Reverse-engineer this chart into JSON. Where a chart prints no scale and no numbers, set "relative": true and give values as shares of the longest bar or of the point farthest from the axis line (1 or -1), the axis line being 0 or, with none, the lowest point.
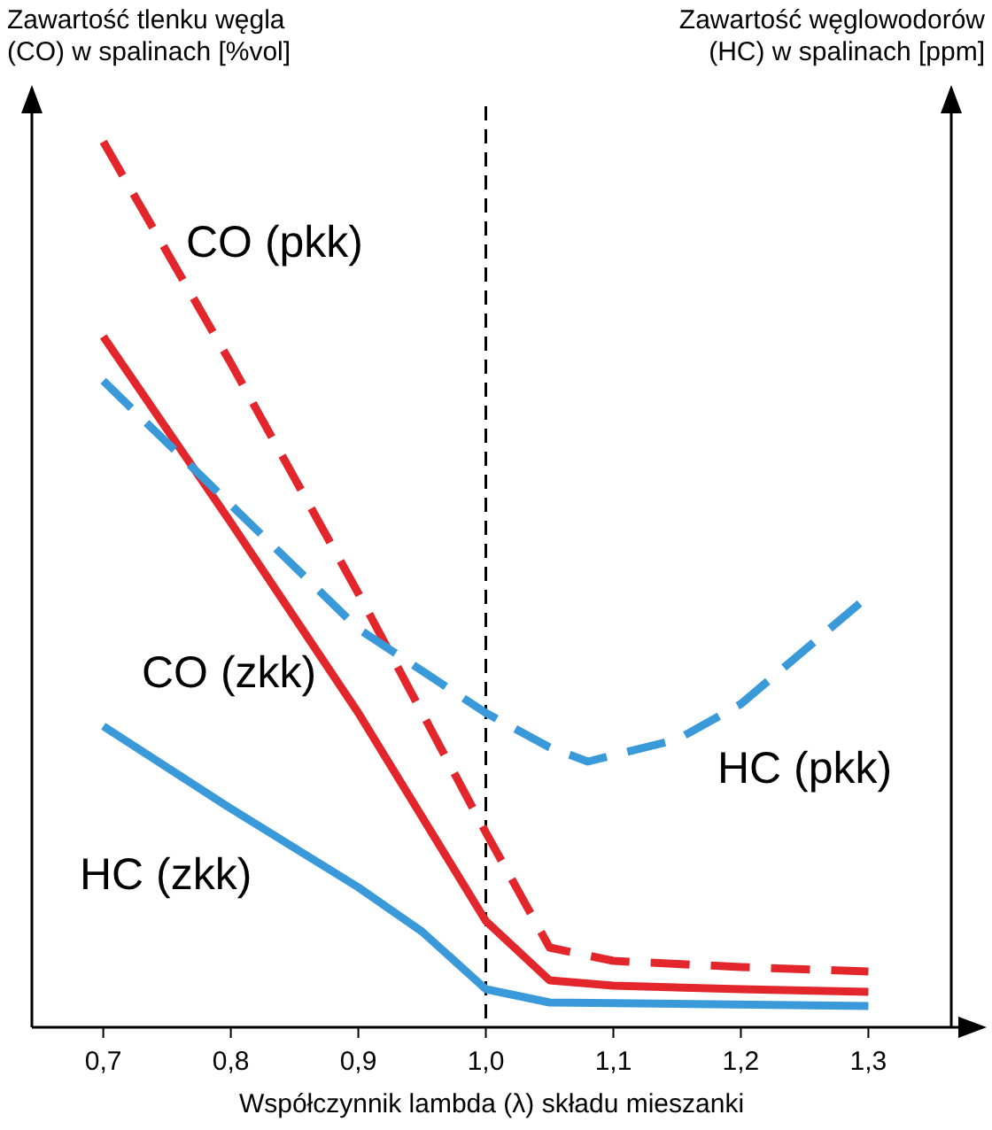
{
  "chart_data": {
    "type": "line",
    "relative": true,
    "xlabel": "Współczynnik lambda (λ) składu mieszanki",
    "ylabel": "Zawartość tlenku węgla\n(CO) w spalinach [%vol]",
    "y2label": "Zawartość węglowodorów\n(HC) w spalinach [ppm]",
    "x": [
      0.7,
      0.8,
      0.9,
      1.0,
      1.05,
      1.1,
      1.2,
      1.3
    ],
    "xlim": [
      0.644,
      1.365
    ],
    "xticks": [
      {
        "value": 0.7,
        "label": "0,7"
      },
      {
        "value": 0.8,
        "label": "0,8"
      },
      {
        "value": 0.9,
        "label": "0,9"
      },
      {
        "value": 1.0,
        "label": "1,0"
      },
      {
        "value": 1.1,
        "label": "1,1"
      },
      {
        "value": 1.2,
        "label": "1,2"
      },
      {
        "value": 1.3,
        "label": "1,3"
      }
    ],
    "series": [
      {
        "name": "CO (pkk)",
        "color": "#e3262b",
        "line_style": "dashed",
        "values": [
          1.0,
          0.75,
          0.49,
          0.22,
          0.09,
          0.075,
          0.068,
          0.063
        ]
      },
      {
        "name": "CO (zkk)",
        "color": "#e3262b",
        "line_style": "solid",
        "values": [
          0.78,
          0.57,
          0.355,
          0.12,
          0.053,
          0.047,
          0.043,
          0.04
        ]
      },
      {
        "name": "HC (pkk)",
        "color": "#3a9ad9",
        "line_style": "dashed",
        "x": [
          0.7,
          0.8,
          0.9,
          1.0,
          1.05,
          1.08,
          1.15,
          1.2,
          1.3
        ],
        "values": [
          0.73,
          0.59,
          0.45,
          0.355,
          0.316,
          0.3,
          0.325,
          0.365,
          0.487
        ]
      },
      {
        "name": "HC (zkk)",
        "color": "#3a9ad9",
        "line_style": "solid",
        "x": [
          0.7,
          0.8,
          0.9,
          0.95,
          1.0,
          1.05,
          1.3
        ],
        "values": [
          0.34,
          0.247,
          0.158,
          0.108,
          0.043,
          0.028,
          0.024
        ]
      }
    ],
    "ref_lines": [
      {
        "axis": "x",
        "value": 1.0,
        "color": "#000000",
        "line_style": "dashed"
      }
    ],
    "grid": false
  }
}
